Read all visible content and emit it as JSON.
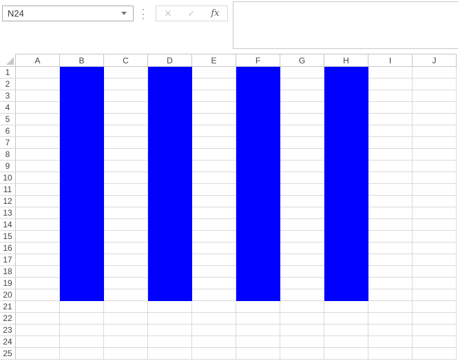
{
  "toolbar": {
    "name_box_value": "N24",
    "cancel_icon": "✕",
    "confirm_icon": "✓",
    "function_icon": "fx",
    "formula_bar_value": ""
  },
  "grid": {
    "columns": [
      "A",
      "B",
      "C",
      "D",
      "E",
      "F",
      "G",
      "H",
      "I",
      "J"
    ],
    "rows": [
      "1",
      "2",
      "3",
      "4",
      "5",
      "6",
      "7",
      "8",
      "9",
      "10",
      "11",
      "12",
      "13",
      "14",
      "15",
      "16",
      "17",
      "18",
      "19",
      "20",
      "21",
      "22",
      "23",
      "24",
      "25"
    ],
    "filled_columns": [
      "B",
      "D",
      "F",
      "H"
    ],
    "filled_row_start": 1,
    "filled_row_end": 20,
    "fill_color": "#0000ff",
    "gridline_color": "#d9d9d9",
    "header_line_color": "#c6c6c6",
    "header_text_color": "#444444"
  }
}
